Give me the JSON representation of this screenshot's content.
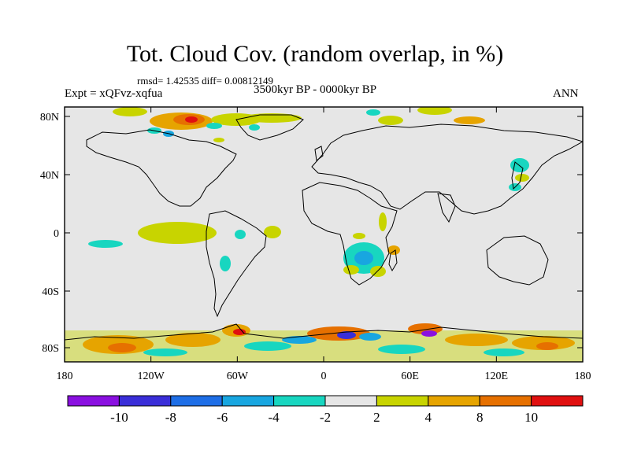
{
  "title": "Tot. Cloud Cov. (random overlap, in %)",
  "stats_text": "rmsd= 1.42535  diff= 0.00812149",
  "left_label": "Expt = xQFvz-xqfua",
  "center_label": "3500kyr BP - 0000kyr BP",
  "right_label": "ANN",
  "lat_ticks": [
    "80N",
    "40N",
    "0",
    "40S",
    "80S"
  ],
  "lon_ticks": [
    "180",
    "120W",
    "60W",
    "0",
    "60E",
    "120E",
    "180"
  ],
  "colorbar": {
    "colors": [
      "#8a10e0",
      "#3a2ed8",
      "#1e6ee6",
      "#18a6e0",
      "#18d6c0",
      "#e6e6e6",
      "#c8d400",
      "#e6a400",
      "#e67000",
      "#e01010"
    ],
    "labels": [
      "-10",
      "-8",
      "-6",
      "-4",
      "-2",
      "2",
      "4",
      "8",
      "10"
    ]
  },
  "colors": {
    "background_field": "#e6e6e6",
    "coast": "#000000"
  }
}
